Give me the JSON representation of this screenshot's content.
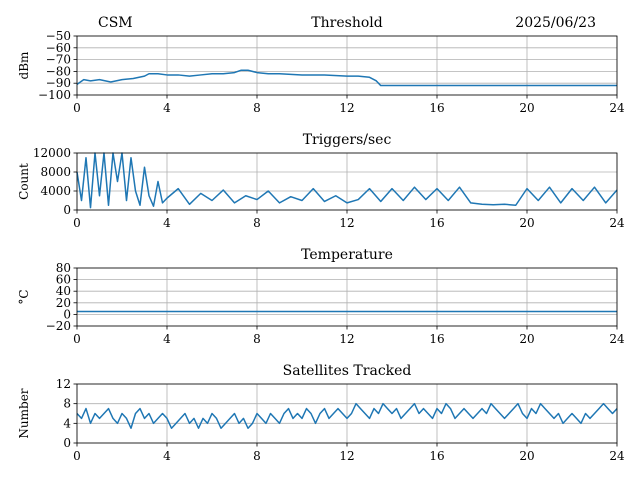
{
  "header": {
    "left": "CSM",
    "right": "2025/06/23"
  },
  "colors": {
    "line": "#1f77b4",
    "grid": "#b0b0b0",
    "axis": "#000000"
  },
  "chart_data": [
    {
      "type": "line",
      "title": "Threshold",
      "ylabel": "dBm",
      "xlim": [
        0,
        24
      ],
      "xticks": [
        "0",
        "4",
        "8",
        "12",
        "16",
        "20",
        "24"
      ],
      "ylim": [
        -100,
        -50
      ],
      "yticks": [
        "−50",
        "−60",
        "−70",
        "−80",
        "−90",
        "−100"
      ],
      "grid": true,
      "x": [
        0,
        0.3,
        0.6,
        1,
        1.5,
        2,
        2.5,
        3,
        3.2,
        3.6,
        4,
        4.5,
        5,
        5.5,
        6,
        6.5,
        7,
        7.3,
        7.6,
        8,
        8.5,
        9,
        10,
        11,
        12,
        12.5,
        13,
        13.3,
        13.5,
        14,
        16,
        18,
        20,
        22,
        24
      ],
      "y": [
        -91,
        -87,
        -88,
        -87,
        -89,
        -87,
        -86,
        -84,
        -82,
        -82,
        -83,
        -83,
        -84,
        -83,
        -82,
        -82,
        -81,
        -79,
        -79,
        -81,
        -82,
        -82,
        -83,
        -83,
        -84,
        -84,
        -85,
        -88,
        -92,
        -92,
        -92,
        -92,
        -92,
        -92,
        -92
      ]
    },
    {
      "type": "line",
      "title": "Triggers/sec",
      "ylabel": "Count",
      "xlim": [
        0,
        24
      ],
      "xticks": [
        "0",
        "4",
        "8",
        "12",
        "16",
        "20",
        "24"
      ],
      "ylim": [
        0,
        12000
      ],
      "yticks": [
        "12000",
        "8000",
        "4000",
        "0"
      ],
      "grid": true,
      "x": [
        0,
        0.2,
        0.4,
        0.6,
        0.8,
        1,
        1.2,
        1.4,
        1.6,
        1.8,
        2,
        2.2,
        2.4,
        2.6,
        2.8,
        3,
        3.2,
        3.4,
        3.6,
        3.8,
        4,
        4.5,
        5,
        5.5,
        6,
        6.5,
        7,
        7.5,
        8,
        8.5,
        9,
        9.5,
        10,
        10.5,
        11,
        11.5,
        12,
        12.5,
        13,
        13.5,
        14,
        14.5,
        15,
        15.5,
        16,
        16.5,
        17,
        17.5,
        18,
        18.5,
        19,
        19.5,
        20,
        20.5,
        21,
        21.5,
        22,
        22.5,
        23,
        23.5,
        24
      ],
      "y": [
        8000,
        2000,
        11000,
        500,
        12000,
        3000,
        12000,
        1000,
        12000,
        6000,
        12000,
        2000,
        11000,
        4000,
        1000,
        9000,
        3000,
        800,
        6000,
        1500,
        2500,
        4500,
        1200,
        3500,
        2000,
        4200,
        1500,
        3000,
        2200,
        4000,
        1500,
        2800,
        2000,
        4500,
        1800,
        3000,
        1500,
        2200,
        4500,
        1800,
        4500,
        2000,
        4800,
        2200,
        4500,
        2000,
        4800,
        1500,
        1200,
        1100,
        1200,
        1000,
        4500,
        2000,
        4800,
        1500,
        4500,
        2000,
        4800,
        1500,
        4200
      ]
    },
    {
      "type": "line",
      "title": "Temperature",
      "ylabel": "°C",
      "xlim": [
        0,
        24
      ],
      "xticks": [
        "0",
        "4",
        "8",
        "12",
        "16",
        "20",
        "24"
      ],
      "ylim": [
        -20,
        80
      ],
      "yticks": [
        "80",
        "60",
        "40",
        "20",
        "0",
        "−20"
      ],
      "grid": true,
      "x": [
        0,
        24
      ],
      "y": [
        5,
        5
      ]
    },
    {
      "type": "line",
      "title": "Satellites Tracked",
      "ylabel": "Number",
      "xlim": [
        0,
        24
      ],
      "xticks": [
        "0",
        "4",
        "8",
        "12",
        "16",
        "20",
        "24"
      ],
      "ylim": [
        0,
        12
      ],
      "yticks": [
        "12",
        "8",
        "4",
        "0"
      ],
      "grid": true,
      "x": [
        0,
        0.2,
        0.4,
        0.6,
        0.8,
        1,
        1.2,
        1.4,
        1.6,
        1.8,
        2,
        2.2,
        2.4,
        2.6,
        2.8,
        3,
        3.2,
        3.4,
        3.6,
        3.8,
        4,
        4.2,
        4.4,
        4.6,
        4.8,
        5,
        5.2,
        5.4,
        5.6,
        5.8,
        6,
        6.2,
        6.4,
        6.6,
        6.8,
        7,
        7.2,
        7.4,
        7.6,
        7.8,
        8,
        8.2,
        8.4,
        8.6,
        8.8,
        9,
        9.2,
        9.4,
        9.6,
        9.8,
        10,
        10.2,
        10.4,
        10.6,
        10.8,
        11,
        11.2,
        11.4,
        11.6,
        11.8,
        12,
        12.2,
        12.4,
        12.6,
        12.8,
        13,
        13.2,
        13.4,
        13.6,
        13.8,
        14,
        14.2,
        14.4,
        14.6,
        14.8,
        15,
        15.2,
        15.4,
        15.6,
        15.8,
        16,
        16.2,
        16.4,
        16.6,
        16.8,
        17,
        17.2,
        17.4,
        17.6,
        17.8,
        18,
        18.2,
        18.4,
        18.6,
        18.8,
        19,
        19.2,
        19.4,
        19.6,
        19.8,
        20,
        20.2,
        20.4,
        20.6,
        20.8,
        21,
        21.2,
        21.4,
        21.6,
        21.8,
        22,
        22.2,
        22.4,
        22.6,
        22.8,
        23,
        23.2,
        23.4,
        23.6,
        23.8,
        24
      ],
      "y": [
        6,
        5,
        7,
        4,
        6,
        5,
        6,
        7,
        5,
        4,
        6,
        5,
        3,
        6,
        7,
        5,
        6,
        4,
        5,
        6,
        5,
        3,
        4,
        5,
        6,
        4,
        5,
        3,
        5,
        4,
        6,
        5,
        3,
        4,
        5,
        6,
        4,
        5,
        3,
        4,
        6,
        5,
        4,
        6,
        5,
        4,
        6,
        7,
        5,
        6,
        5,
        7,
        6,
        4,
        6,
        7,
        5,
        6,
        7,
        6,
        5,
        6,
        8,
        7,
        6,
        5,
        7,
        6,
        8,
        7,
        6,
        7,
        5,
        6,
        7,
        8,
        6,
        7,
        6,
        5,
        7,
        6,
        8,
        7,
        5,
        6,
        7,
        6,
        5,
        6,
        7,
        6,
        8,
        7,
        6,
        5,
        6,
        7,
        8,
        6,
        5,
        7,
        6,
        8,
        7,
        6,
        5,
        6,
        4,
        5,
        6,
        5,
        4,
        6,
        5,
        6,
        7,
        8,
        7,
        6,
        7
      ]
    }
  ]
}
